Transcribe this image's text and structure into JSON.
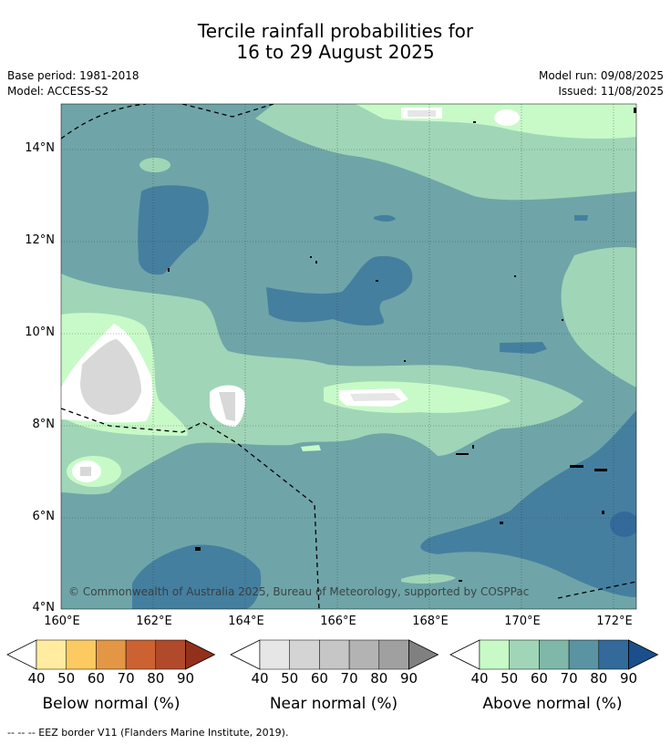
{
  "title_line1": "Tercile rainfall probabilities for",
  "title_line2": "16 to 29 August 2025",
  "base_period": "Base period: 1981-2018",
  "model": "Model: ACCESS-S2",
  "model_run": "Model run: 09/08/2025",
  "issued": "Issued: 11/08/2025",
  "copyright": "© Commonwealth of Australia 2025, Bureau of Meteorology, supported by COSPPac",
  "lat_labels": [
    "14°N",
    "12°N",
    "10°N",
    "8°N",
    "6°N",
    "4°N"
  ],
  "lon_labels": [
    "160°E",
    "162°E",
    "164°E",
    "166°E",
    "168°E",
    "170°E",
    "172°E"
  ],
  "colorbars": [
    {
      "title": "Below normal (%)",
      "ticks": [
        "40",
        "50",
        "60",
        "70",
        "80",
        "90"
      ],
      "colors": [
        "#ffeca0",
        "#fdca62",
        "#e39744",
        "#cc6232",
        "#b04a2a"
      ],
      "under_color": "#ffffff",
      "over_color": "#93301c"
    },
    {
      "title": "Near normal (%)",
      "ticks": [
        "40",
        "50",
        "60",
        "70",
        "80",
        "90"
      ],
      "colors": [
        "#e6e6e6",
        "#d4d4d4",
        "#c6c6c6",
        "#b3b3b3",
        "#a0a0a0"
      ],
      "under_color": "#ffffff",
      "over_color": "#808080"
    },
    {
      "title": "Above normal (%)",
      "ticks": [
        "40",
        "50",
        "60",
        "70",
        "80",
        "90"
      ],
      "colors": [
        "#c8fac8",
        "#a0d6b7",
        "#7fb7a8",
        "#5a94a3",
        "#336a9a"
      ],
      "under_color": "#ffffff",
      "over_color": "#1a4f8c"
    }
  ],
  "footnote": "--  --  -- EEZ border V11 (Flanders Marine Institute, 2019)."
}
